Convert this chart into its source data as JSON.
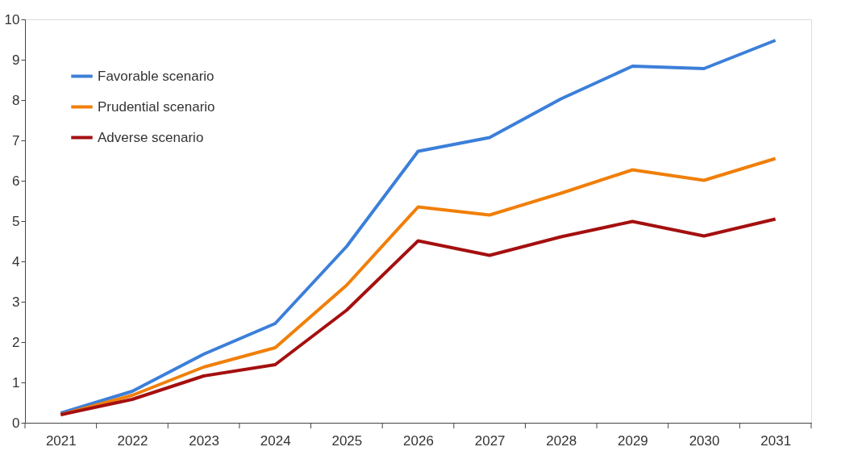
{
  "chart_data": {
    "type": "line",
    "categories": [
      "2021",
      "2022",
      "2023",
      "2024",
      "2025",
      "2026",
      "2027",
      "2028",
      "2029",
      "2030",
      "2031"
    ],
    "series": [
      {
        "name": "Favorable scenario",
        "color": "#3c7fd9",
        "values": [
          0.24,
          0.78,
          1.7,
          2.46,
          4.37,
          6.73,
          7.07,
          8.03,
          8.84,
          8.78,
          9.48
        ]
      },
      {
        "name": "Prudential scenario",
        "color": "#f07f09",
        "values": [
          0.2,
          0.68,
          1.38,
          1.86,
          3.41,
          5.35,
          5.15,
          5.69,
          6.27,
          6.01,
          6.55
        ]
      },
      {
        "name": "Adverse scenario",
        "color": "#a50f0f",
        "values": [
          0.2,
          0.58,
          1.16,
          1.44,
          2.79,
          4.51,
          4.15,
          4.61,
          4.99,
          4.63,
          5.05
        ]
      }
    ],
    "ylim": [
      0,
      10
    ],
    "yticks": [
      0,
      1,
      2,
      3,
      4,
      5,
      6,
      7,
      8,
      9,
      10
    ],
    "grid": false,
    "legend": "top left",
    "marker": "none",
    "line_style": "solid"
  }
}
